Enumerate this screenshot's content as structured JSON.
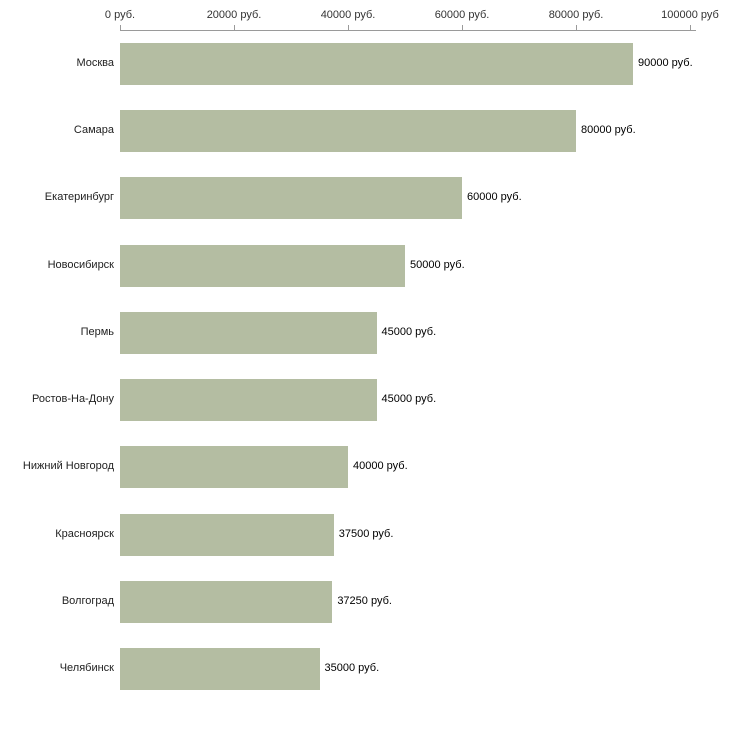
{
  "chart_data": {
    "type": "bar",
    "orientation": "horizontal",
    "title": "",
    "xlabel": "",
    "ylabel": "",
    "categories": [
      "Москва",
      "Самара",
      "Екатеринбург",
      "Новосибирск",
      "Пермь",
      "Ростов-На-Дону",
      "Нижний Новгород",
      "Красноярск",
      "Волгоград",
      "Челябинск"
    ],
    "values": [
      90000,
      80000,
      60000,
      50000,
      45000,
      45000,
      40000,
      37500,
      37250,
      35000
    ],
    "value_labels": [
      "90000 руб.",
      "80000 руб.",
      "60000 руб.",
      "50000 руб.",
      "45000 руб.",
      "45000 руб.",
      "40000 руб.",
      "37500 руб.",
      "37250 руб.",
      "35000 руб."
    ],
    "x_ticks": [
      0,
      20000,
      40000,
      60000,
      80000,
      100000
    ],
    "x_tick_labels": [
      "0 руб.",
      "20000 руб.",
      "40000 руб.",
      "60000 руб.",
      "80000 руб.",
      "100000 руб"
    ],
    "xlim": [
      0,
      100000
    ],
    "axis_position": "top",
    "grid": false,
    "legend": "none",
    "bar_color": "#b4bda2",
    "axis_color": "#9a9a9a",
    "text_color": "#222222"
  }
}
